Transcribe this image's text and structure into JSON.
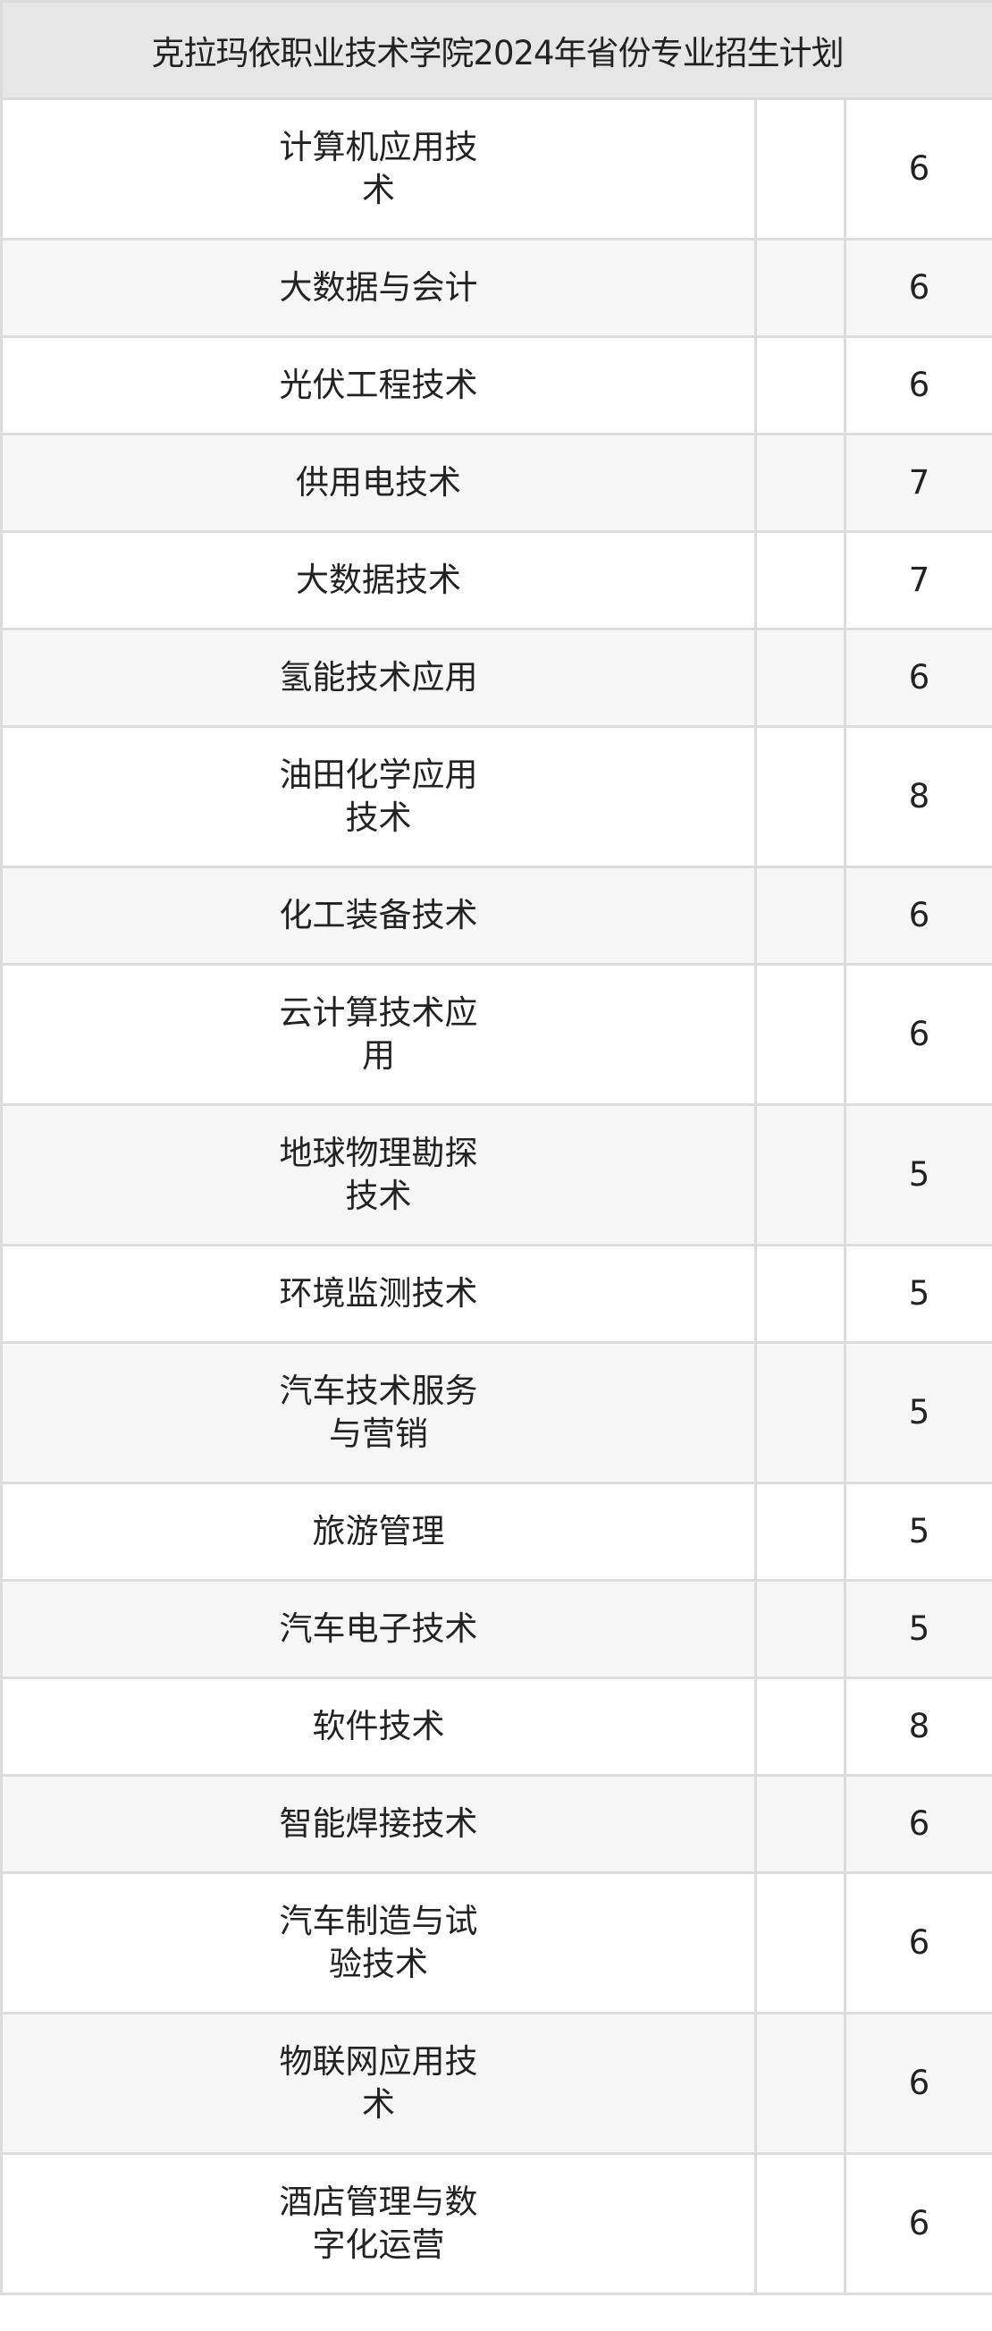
{
  "title": "克拉玛依职业技术学院2024年省份专业招生计划",
  "rows": [
    {
      "major": "计算机应用技术",
      "extra": "",
      "count": "6"
    },
    {
      "major": "大数据与会计",
      "extra": "",
      "count": "6"
    },
    {
      "major": "光伏工程技术",
      "extra": "",
      "count": "6"
    },
    {
      "major": "供用电技术",
      "extra": "",
      "count": "7"
    },
    {
      "major": "大数据技术",
      "extra": "",
      "count": "7"
    },
    {
      "major": "氢能技术应用",
      "extra": "",
      "count": "6"
    },
    {
      "major": "油田化学应用技术",
      "extra": "",
      "count": "8"
    },
    {
      "major": "化工装备技术",
      "extra": "",
      "count": "6"
    },
    {
      "major": "云计算技术应用",
      "extra": "",
      "count": "6"
    },
    {
      "major": "地球物理勘探技术",
      "extra": "",
      "count": "5"
    },
    {
      "major": "环境监测技术",
      "extra": "",
      "count": "5"
    },
    {
      "major": "汽车技术服务与营销",
      "extra": "",
      "count": "5"
    },
    {
      "major": "旅游管理",
      "extra": "",
      "count": "5"
    },
    {
      "major": "汽车电子技术",
      "extra": "",
      "count": "5"
    },
    {
      "major": "软件技术",
      "extra": "",
      "count": "8"
    },
    {
      "major": "智能焊接技术",
      "extra": "",
      "count": "6"
    },
    {
      "major": "汽车制造与试验技术",
      "extra": "",
      "count": "6"
    },
    {
      "major": "物联网应用技术",
      "extra": "",
      "count": "6"
    },
    {
      "major": "酒店管理与数字化运营",
      "extra": "",
      "count": "6"
    }
  ]
}
